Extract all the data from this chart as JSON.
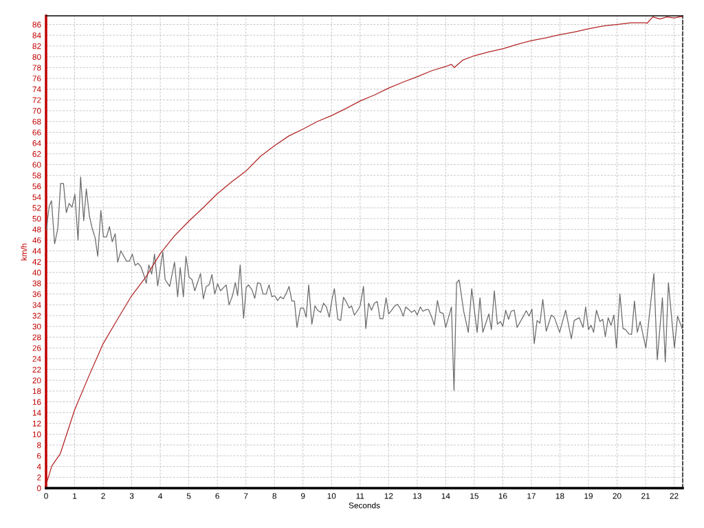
{
  "chart_data": {
    "type": "line",
    "xlabel": "Seconds",
    "ylabel": "km/h",
    "xlim": [
      0,
      22.3
    ],
    "ylim": [
      0,
      87.6
    ],
    "xticks": [
      0,
      1,
      2,
      3,
      4,
      5,
      6,
      7,
      8,
      9,
      10,
      11,
      12,
      13,
      14,
      15,
      16,
      17,
      18,
      19,
      20,
      21,
      22
    ],
    "yticks": [
      0,
      2,
      4,
      6,
      8,
      10,
      12,
      14,
      16,
      18,
      20,
      22,
      24,
      26,
      28,
      30,
      32,
      34,
      36,
      38,
      40,
      42,
      44,
      46,
      48,
      50,
      52,
      54,
      56,
      58,
      60,
      62,
      64,
      66,
      68,
      70,
      72,
      74,
      76,
      78,
      80,
      82,
      84,
      86
    ],
    "grid": true,
    "series": [
      {
        "type": "line",
        "color": "#696969",
        "x": [
          0.02,
          0.06,
          0.11,
          0.19,
          0.3,
          0.41,
          0.51,
          0.61,
          0.71,
          0.81,
          0.91,
          1.01,
          1.12,
          1.21,
          1.32,
          1.41,
          1.52,
          1.62,
          1.72,
          1.81,
          1.92,
          2.01,
          2.12,
          2.22,
          2.32,
          2.42,
          2.51,
          2.62,
          2.82,
          2.92,
          3.02,
          3.12,
          3.22,
          3.32,
          3.42,
          3.51,
          3.6,
          3.7,
          3.8,
          3.91,
          4.09,
          4.17,
          4.33,
          4.5,
          4.61,
          4.7,
          4.81,
          4.9,
          5.01,
          5.11,
          5.21,
          5.41,
          5.51,
          5.61,
          5.71,
          5.81,
          5.91,
          6.01,
          6.11,
          6.31,
          6.41,
          6.53,
          6.63,
          6.71,
          6.8,
          6.92,
          7.01,
          7.09,
          7.21,
          7.31,
          7.41,
          7.51,
          7.6,
          7.71,
          7.81,
          7.91,
          8.01,
          8.11,
          8.21,
          8.31,
          8.42,
          8.51,
          8.61,
          8.7,
          8.79,
          8.91,
          9.02,
          9.11,
          9.2,
          9.31,
          9.42,
          9.51,
          9.62,
          9.72,
          9.82,
          9.92,
          10.02,
          10.1,
          10.22,
          10.32,
          10.42,
          10.52,
          10.62,
          10.7,
          10.8,
          10.92,
          11.0,
          11.12,
          11.2,
          11.3,
          11.4,
          11.5,
          11.6,
          11.7,
          11.8,
          11.91,
          12.0,
          12.11,
          12.2,
          12.31,
          12.4,
          12.51,
          12.6,
          12.71,
          12.8,
          12.91,
          13.0,
          13.11,
          13.2,
          13.31,
          13.4,
          13.51,
          13.6,
          13.71,
          13.8,
          13.91,
          14.0,
          14.11,
          14.2,
          14.29,
          14.38,
          14.47,
          14.63,
          14.79,
          14.91,
          15.1,
          15.2,
          15.3,
          15.51,
          15.6,
          15.7,
          15.81,
          15.92,
          16.0,
          16.1,
          16.2,
          16.29,
          16.4,
          16.5,
          16.7,
          16.82,
          16.92,
          17.02,
          17.1,
          17.2,
          17.3,
          17.4,
          17.52,
          17.7,
          17.8,
          17.99,
          18.2,
          18.4,
          18.5,
          18.68,
          18.81,
          18.9,
          19.0,
          19.09,
          19.18,
          19.28,
          19.4,
          19.5,
          19.59,
          19.69,
          19.79,
          19.89,
          19.98,
          20.1,
          20.21,
          20.3,
          20.41,
          20.51,
          20.61,
          20.71,
          20.81,
          21.01,
          21.29,
          21.41,
          21.59,
          21.69,
          21.8,
          22.01,
          22.12,
          22.28
        ],
        "values": [
          47.9,
          50.2,
          52.3,
          53.3,
          45.3,
          48.1,
          56.5,
          56.5,
          51.1,
          52.8,
          52.1,
          54.5,
          46.0,
          57.7,
          49.6,
          55.5,
          50.4,
          48.1,
          46.4,
          43.0,
          51.5,
          46.6,
          46.6,
          48.5,
          45.7,
          47.2,
          41.9,
          44.0,
          42.1,
          42.1,
          43.4,
          41.3,
          41.7,
          41.1,
          39.6,
          38.0,
          41.4,
          39.7,
          43.4,
          37.5,
          43.8,
          38.7,
          37.4,
          41.9,
          35.5,
          40.9,
          35.5,
          43.0,
          39.1,
          38.7,
          36.6,
          39.8,
          35.1,
          37.4,
          37.7,
          39.6,
          36.0,
          37.9,
          36.6,
          37.7,
          34.0,
          35.7,
          38.1,
          35.7,
          41.4,
          31.5,
          37.2,
          37.7,
          36.8,
          35.2,
          38.1,
          37.9,
          36.0,
          36.0,
          37.7,
          35.5,
          35.7,
          34.8,
          35.5,
          35.1,
          36.2,
          37.4,
          34.7,
          34.7,
          29.8,
          33.4,
          33.4,
          31.7,
          37.7,
          30.4,
          33.8,
          33.0,
          32.6,
          34.3,
          33.6,
          31.7,
          35.1,
          37.0,
          31.3,
          31.1,
          35.4,
          34.5,
          33.4,
          33.8,
          32.1,
          33.0,
          33.8,
          37.4,
          29.6,
          34.3,
          33.0,
          34.3,
          34.6,
          31.4,
          31.4,
          35.3,
          32.3,
          33.0,
          33.7,
          34.1,
          33.4,
          31.9,
          33.6,
          33.1,
          32.6,
          33.0,
          32.1,
          33.6,
          32.8,
          33.1,
          33.1,
          31.7,
          30.2,
          34.8,
          32.6,
          32.4,
          29.8,
          31.9,
          33.6,
          18.1,
          38.1,
          38.6,
          32.8,
          28.9,
          37.0,
          28.9,
          35.3,
          28.9,
          32.3,
          29.4,
          36.6,
          30.4,
          30.9,
          30.0,
          33.0,
          31.3,
          32.8,
          33.0,
          29.8,
          31.7,
          32.9,
          31.9,
          33.2,
          26.8,
          31.1,
          30.6,
          35.0,
          29.1,
          32.1,
          31.7,
          28.9,
          33.0,
          27.7,
          31.1,
          31.6,
          29.8,
          33.6,
          29.4,
          30.2,
          28.9,
          33.0,
          30.9,
          31.3,
          28.1,
          31.6,
          30.2,
          32.1,
          26.0,
          36.0,
          29.6,
          29.4,
          28.6,
          28.5,
          34.7,
          28.9,
          30.9,
          26.0,
          39.8,
          23.8,
          35.3,
          23.4,
          38.1,
          26.0,
          31.9,
          29.6
        ]
      },
      {
        "type": "line",
        "color": "#b22222",
        "x": [
          0,
          0.05,
          0.2,
          0.5,
          1,
          1.5,
          2,
          2.5,
          3,
          3.5,
          4,
          4.5,
          5,
          5.5,
          6,
          6.5,
          7,
          7.5,
          8,
          8.5,
          9,
          9.5,
          10,
          10.5,
          11,
          11.5,
          12,
          12.5,
          13,
          13.5,
          14,
          14.2,
          14.3,
          14.6,
          15,
          15.5,
          16,
          16.5,
          17,
          17.5,
          18,
          18.5,
          19,
          19.5,
          20,
          20.5,
          21,
          21.05,
          21.25,
          21.5,
          21.75,
          22,
          22.3
        ],
        "values": [
          0.8,
          1.5,
          4.1,
          6.4,
          14.5,
          20.8,
          26.8,
          31.3,
          35.7,
          39.2,
          43.5,
          46.8,
          49.5,
          52.0,
          54.6,
          56.8,
          58.8,
          61.5,
          63.5,
          65.3,
          66.6,
          68.0,
          69.1,
          70.4,
          71.8,
          72.9,
          74.2,
          75.3,
          76.3,
          77.4,
          78.2,
          78.6,
          78.0,
          79.4,
          80.2,
          80.9,
          81.5,
          82.3,
          83.0,
          83.5,
          84.1,
          84.6,
          85.2,
          85.7,
          86.0,
          86.3,
          86.3,
          86.2,
          87.4,
          87.0,
          87.4,
          87.2,
          87.5
        ]
      }
    ]
  }
}
